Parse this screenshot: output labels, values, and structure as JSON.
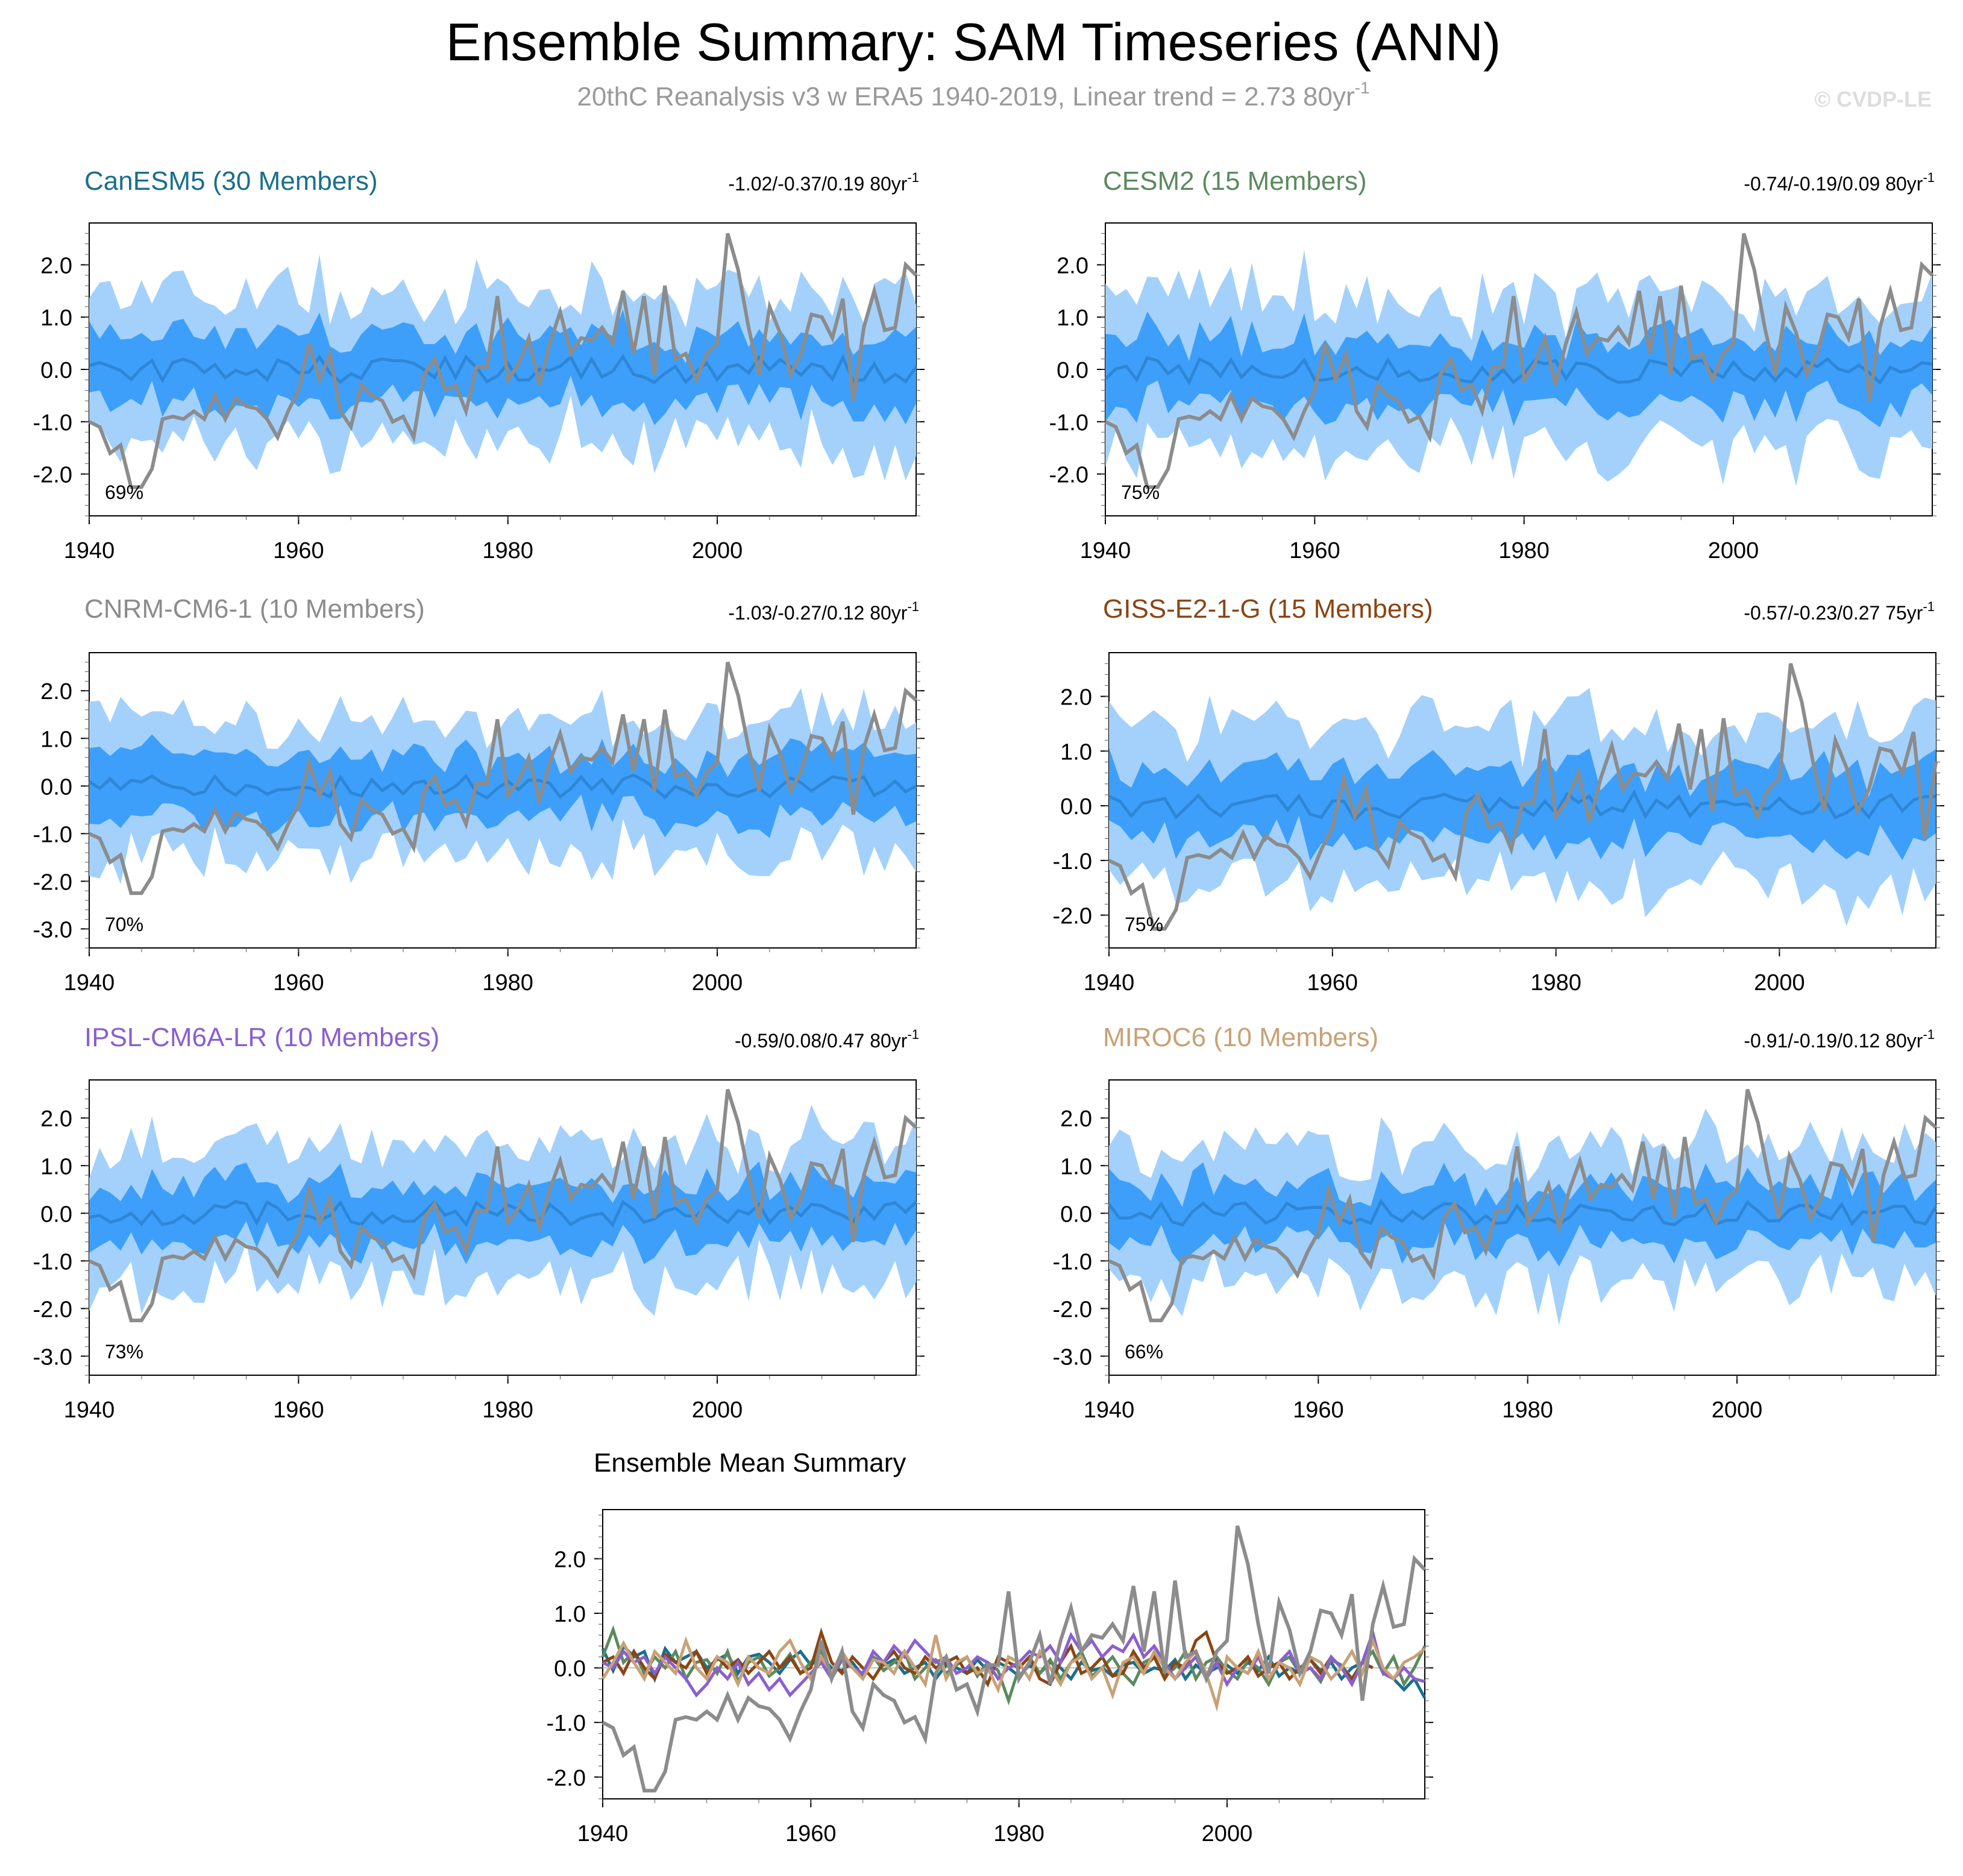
{
  "figure": {
    "title": "Ensemble Summary: SAM Timeseries (ANN)",
    "subtitle": "20thC Reanalysis v3 w ERA5 1940-2019, Linear trend = 2.73 80yr",
    "subtitle_sup": "-1",
    "watermark": "© CVDP-LE"
  },
  "colors": {
    "outer_band": "#a3d1fc",
    "inner_band": "#3d9ff9",
    "ensemble_mean": "#2e86d6",
    "observations": "#8c8c8c"
  },
  "panels": [
    {
      "title": "CanESM5 (30 Members)",
      "title_color": "#1a6f8c",
      "trend": "-1.02/-0.37/0.19 80yr",
      "trend_sup": "-1",
      "pct": "69%",
      "yticks": [
        "2.0",
        "1.0",
        "0.0",
        "-1.0",
        "-2.0"
      ],
      "xticks": [
        "1940",
        "1960",
        "1980",
        "2000"
      ],
      "ylim": [
        -2.8,
        2.8
      ],
      "xlim": [
        1940,
        2019
      ],
      "seed": 11
    },
    {
      "title": "CESM2 (15 Members)",
      "title_color": "#5b8a5f",
      "trend": "-0.74/-0.19/0.09 80yr",
      "trend_sup": "-1",
      "pct": "75%",
      "yticks": [
        "2.0",
        "1.0",
        "0.0",
        "-1.0",
        "-2.0"
      ],
      "xticks": [
        "1940",
        "1960",
        "1980",
        "2000"
      ],
      "ylim": [
        -2.8,
        2.8
      ],
      "xlim": [
        1940,
        2019
      ],
      "seed": 23
    },
    {
      "title": "CNRM-CM6-1 (10 Members)",
      "title_color": "#8c8c8c",
      "trend": "-1.03/-0.27/0.12 80yr",
      "trend_sup": "-1",
      "pct": "70%",
      "yticks": [
        "2.0",
        "1.0",
        "0.0",
        "-1.0",
        "-2.0",
        "-3.0"
      ],
      "xticks": [
        "1940",
        "1960",
        "1980",
        "2000"
      ],
      "ylim": [
        -3.4,
        2.8
      ],
      "xlim": [
        1940,
        2019
      ],
      "seed": 37
    },
    {
      "title": "GISS-E2-1-G (15 Members)",
      "title_color": "#8b4513",
      "trend": "-0.57/-0.23/0.27 75yr",
      "trend_sup": "-1",
      "pct": "75%",
      "yticks": [
        "2.0",
        "1.0",
        "0.0",
        "-1.0",
        "-2.0"
      ],
      "xticks": [
        "1940",
        "1960",
        "1980",
        "2000"
      ],
      "ylim": [
        -2.6,
        2.8
      ],
      "xlim": [
        1940,
        2014
      ],
      "seed": 41
    },
    {
      "title": "IPSL-CM6A-LR (10 Members)",
      "title_color": "#8a5fd0",
      "trend": "-0.59/0.08/0.47 80yr",
      "trend_sup": "-1",
      "pct": "73%",
      "yticks": [
        "2.0",
        "1.0",
        "0.0",
        "-1.0",
        "-2.0",
        "-3.0"
      ],
      "xticks": [
        "1940",
        "1960",
        "1980",
        "2000"
      ],
      "ylim": [
        -3.4,
        2.8
      ],
      "xlim": [
        1940,
        2019
      ],
      "seed": 53
    },
    {
      "title": "MIROC6 (10 Members)",
      "title_color": "#c8a176",
      "trend": "-0.91/-0.19/0.12 80yr",
      "trend_sup": "-1",
      "pct": "66%",
      "yticks": [
        "2.0",
        "1.0",
        "0.0",
        "-1.0",
        "-2.0",
        "-3.0"
      ],
      "xticks": [
        "1940",
        "1960",
        "1980",
        "2000"
      ],
      "ylim": [
        -3.4,
        2.8
      ],
      "xlim": [
        1940,
        2019
      ],
      "seed": 67
    }
  ],
  "summary": {
    "title": "Ensemble Mean Summary",
    "yticks": [
      "2.0",
      "1.0",
      "0.0",
      "-1.0",
      "-2.0"
    ],
    "xticks": [
      "1940",
      "1960",
      "1980",
      "2000"
    ],
    "ylim": [
      -2.4,
      2.9
    ],
    "xlim": [
      1940,
      2019
    ]
  },
  "chart_data": {
    "type": "line",
    "title": "Ensemble Summary: SAM Timeseries (ANN)",
    "x_start": 1940,
    "observations": {
      "name": "20thC Reanalysis v3 w ERA5",
      "values": [
        -1.0,
        -1.1,
        -1.6,
        -1.45,
        -2.25,
        -2.25,
        -1.9,
        -0.95,
        -0.9,
        -0.95,
        -0.8,
        -0.95,
        -0.5,
        -0.95,
        -0.55,
        -0.7,
        -0.75,
        -0.95,
        -1.3,
        -0.8,
        -0.4,
        0.5,
        -0.2,
        0.3,
        -0.8,
        -1.1,
        -0.3,
        -0.5,
        -0.6,
        -1.0,
        -0.9,
        -1.3,
        -0.1,
        0.2,
        -0.4,
        -0.3,
        -0.8,
        0.05,
        0.05,
        1.4,
        -0.2,
        0.1,
        0.6,
        -0.3,
        0.5,
        1.1,
        0.3,
        0.6,
        0.55,
        0.8,
        0.5,
        1.5,
        0.3,
        1.4,
        -0.1,
        1.6,
        0.2,
        0.3,
        -0.2,
        0.3,
        0.5,
        2.6,
        1.9,
        0.8,
        -0.1,
        1.2,
        0.7,
        -0.1,
        0.3,
        1.05,
        1.0,
        0.6,
        1.35,
        -0.6,
        0.8,
        1.5,
        0.75,
        0.8,
        2.0,
        1.8
      ]
    },
    "series": [
      {
        "name": "CanESM5",
        "color": "#1a6f8c",
        "values": [
          0.35,
          -0.05,
          0.4,
          0.2,
          0.3,
          -0.2,
          0.35,
          0.1,
          0.2,
          0.3,
          0.0,
          0.15,
          0.25,
          -0.1,
          0.2,
          0.25,
          0.1,
          -0.1,
          0.15,
          0.3,
          0.05,
          0.2,
          0.0,
          -0.05,
          0.1,
          -0.15,
          0.2,
          0.05,
          0.15,
          -0.1,
          0.0,
          0.1,
          -0.2,
          0.05,
          0.0,
          -0.1,
          0.15,
          -0.05,
          0.1,
          0.0,
          -0.15,
          0.05,
          -0.1,
          0.1,
          0.0,
          -0.2,
          0.1,
          -0.05,
          0.0,
          -0.15,
          0.05,
          0.1,
          -0.1,
          0.0,
          -0.05,
          0.15,
          -0.2,
          0.05,
          -0.1,
          0.0,
          0.05,
          -0.1,
          0.1,
          -0.05,
          0.2,
          -0.15,
          0.0,
          -0.1,
          0.15,
          -0.05,
          0.1,
          -0.2,
          0.0,
          0.1,
          0.3,
          -0.1,
          -0.2,
          -0.4,
          -0.2,
          -0.55
        ]
      },
      {
        "name": "CESM2",
        "color": "#5b8a5f",
        "values": [
          0.2,
          0.7,
          0.1,
          0.3,
          -0.1,
          0.2,
          0.0,
          0.3,
          -0.2,
          0.1,
          0.15,
          -0.1,
          0.3,
          -0.25,
          0.1,
          0.2,
          -0.15,
          0.0,
          0.25,
          -0.1,
          0.1,
          0.3,
          -0.2,
          0.15,
          0.0,
          -0.1,
          0.2,
          -0.05,
          0.1,
          0.3,
          -0.2,
          0.0,
          0.15,
          -0.1,
          0.05,
          0.2,
          -0.15,
          0.1,
          -0.05,
          -0.6,
          0.0,
          0.2,
          -0.1,
          0.15,
          -0.2,
          0.1,
          0.3,
          -0.15,
          0.0,
          0.2,
          -0.1,
          -0.3,
          0.1,
          0.2,
          -0.15,
          0.0,
          0.3,
          -0.2,
          0.1,
          0.2,
          -0.05,
          -0.2,
          0.15,
          0.0,
          -0.3,
          0.1,
          0.2,
          -0.1,
          0.0,
          -0.25,
          0.15,
          0.05,
          -0.2,
          0.1,
          0.3,
          -0.1,
          0.2,
          -0.3,
          0.0,
          0.4
        ]
      },
      {
        "name": "GISS-E2-1-G",
        "color": "#8b4513",
        "values": [
          0.1,
          0.2,
          -0.1,
          0.3,
          0.0,
          -0.2,
          0.25,
          0.1,
          0.0,
          0.3,
          -0.1,
          0.2,
          0.0,
          0.15,
          -0.1,
          0.1,
          0.3,
          0.0,
          0.2,
          -0.1,
          0.0,
          0.65,
          0.1,
          -0.1,
          0.2,
          0.0,
          -0.2,
          0.1,
          0.3,
          0.0,
          -0.1,
          0.2,
          0.0,
          0.1,
          0.2,
          -0.1,
          0.0,
          -0.3,
          0.2,
          0.1,
          0.0,
          0.2,
          -0.2,
          -0.3,
          0.1,
          0.4,
          -0.1,
          0.0,
          0.2,
          -0.15,
          -0.1,
          0.3,
          0.0,
          0.2,
          -0.2,
          0.1,
          0.0,
          0.5,
          0.65,
          0.1,
          -0.1,
          0.0,
          0.2,
          -0.15,
          0.0,
          0.1,
          -0.2,
          0.0,
          0.15,
          -0.1,
          0.2,
          0.0,
          -0.2,
          0.1,
          0.0
        ]
      },
      {
        "name": "IPSL-CM6A-LR",
        "color": "#8a5fd0",
        "values": [
          0.1,
          0.0,
          0.3,
          0.1,
          0.2,
          -0.1,
          0.2,
          0.0,
          -0.2,
          -0.5,
          -0.3,
          0.0,
          -0.2,
          0.1,
          -0.3,
          -0.1,
          -0.4,
          -0.2,
          -0.5,
          -0.3,
          -0.1,
          0.1,
          -0.2,
          0.2,
          0.0,
          -0.1,
          0.3,
          0.1,
          0.4,
          0.2,
          0.5,
          0.3,
          0.1,
          0.2,
          -0.1,
          0.0,
          0.2,
          0.1,
          -0.2,
          0.0,
          0.1,
          0.3,
          0.2,
          0.4,
          0.1,
          0.6,
          0.3,
          0.5,
          0.2,
          0.4,
          0.3,
          0.6,
          0.2,
          0.4,
          0.1,
          -0.2,
          0.0,
          0.2,
          -0.2,
          0.1,
          -0.3,
          0.0,
          -0.1,
          0.2,
          -0.2,
          0.1,
          0.3,
          -0.1,
          0.0,
          -0.2,
          0.2,
          0.0,
          -0.3,
          0.1,
          0.65,
          -0.1,
          -0.2,
          0.0,
          -0.2,
          -0.25
        ]
      },
      {
        "name": "MIROC6",
        "color": "#c8a176",
        "values": [
          -0.2,
          0.1,
          0.45,
          0.1,
          -0.2,
          0.3,
          0.1,
          -0.1,
          0.5,
          0.0,
          -0.2,
          0.2,
          0.1,
          -0.3,
          0.2,
          0.0,
          -0.1,
          0.3,
          0.5,
          0.1,
          -0.2,
          0.2,
          -0.1,
          0.3,
          0.0,
          -0.2,
          0.15,
          0.1,
          -0.1,
          0.3,
          0.0,
          -0.3,
          0.6,
          -0.2,
          0.1,
          0.2,
          -0.1,
          0.0,
          -0.4,
          0.2,
          0.1,
          -0.2,
          0.3,
          0.0,
          -0.3,
          0.1,
          0.2,
          -0.2,
          0.0,
          -0.5,
          0.1,
          0.2,
          -0.1,
          0.3,
          0.0,
          -0.2,
          0.1,
          0.3,
          -0.1,
          -0.7,
          0.2,
          0.0,
          -0.1,
          0.3,
          -0.2,
          0.1,
          0.0,
          -0.3,
          0.2,
          0.1,
          -0.2,
          0.0,
          0.3,
          -0.1,
          0.5,
          0.0,
          -0.2,
          0.1,
          0.2,
          0.35
        ]
      }
    ]
  }
}
